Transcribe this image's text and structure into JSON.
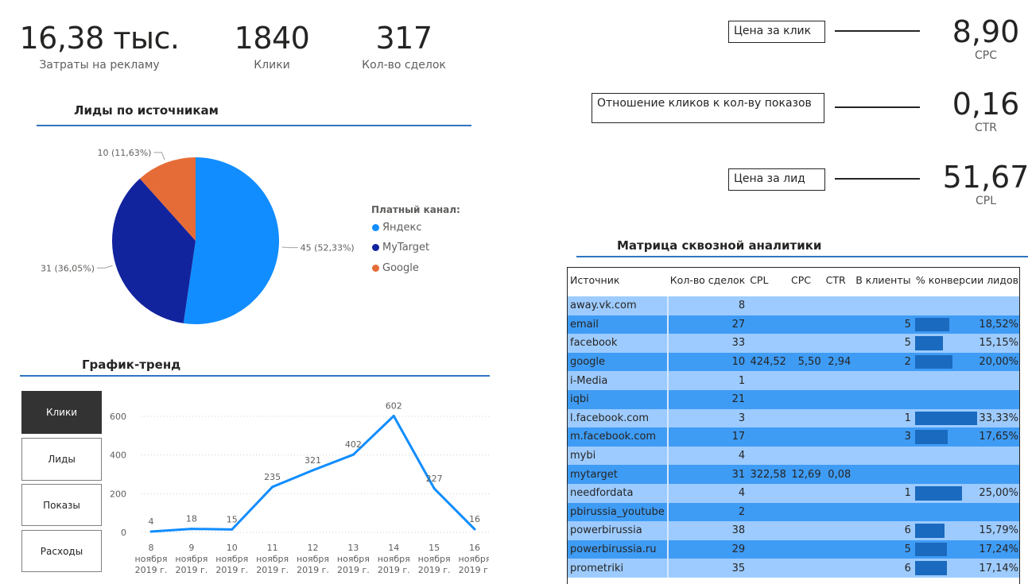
{
  "kpis": [
    {
      "value": "16,38 тыс.",
      "label": "Затраты на рекламу"
    },
    {
      "value": "1840",
      "label": "Клики"
    },
    {
      "value": "317",
      "label": "Кол-во сделок"
    }
  ],
  "right_kpis": [
    {
      "box": "Цена за клик",
      "value": "8,90",
      "label": "CPC"
    },
    {
      "box": "Отношение кликов к кол-ву показов",
      "value": "0,16",
      "label": "CTR"
    },
    {
      "box": "Цена за лид",
      "value": "51,67",
      "label": "CPL"
    }
  ],
  "pie_section": {
    "title": "Лиды по источникам",
    "legend_title": "Платный канал:"
  },
  "trend_section": {
    "title": "График-тренд",
    "buttons": [
      "Клики",
      "Лиды",
      "Показы",
      "Расходы"
    ],
    "active_button": "Клики"
  },
  "matrix_section": {
    "title": "Матрица сквозной аналитики",
    "headers": [
      "Источник",
      "Кол-во сделок",
      "CPL",
      "CPC",
      "CTR",
      "В клиенты",
      "% конверсии лидов"
    ],
    "rows": [
      {
        "source": "away.vk.com",
        "deals": "8",
        "cpl": "",
        "cpc": "",
        "ctr": "",
        "clients": "",
        "conv": "",
        "conv_frac": 0
      },
      {
        "source": "email",
        "deals": "27",
        "cpl": "",
        "cpc": "",
        "ctr": "",
        "clients": "5",
        "conv": "18,52%",
        "conv_frac": 0.1852
      },
      {
        "source": "facebook",
        "deals": "33",
        "cpl": "",
        "cpc": "",
        "ctr": "",
        "clients": "5",
        "conv": "15,15%",
        "conv_frac": 0.1515
      },
      {
        "source": "google",
        "deals": "10",
        "cpl": "424,52",
        "cpc": "5,50",
        "ctr": "2,94",
        "clients": "2",
        "conv": "20,00%",
        "conv_frac": 0.2
      },
      {
        "source": "i-Media",
        "deals": "1",
        "cpl": "",
        "cpc": "",
        "ctr": "",
        "clients": "",
        "conv": "",
        "conv_frac": 0
      },
      {
        "source": "iqbi",
        "deals": "21",
        "cpl": "",
        "cpc": "",
        "ctr": "",
        "clients": "",
        "conv": "",
        "conv_frac": 0
      },
      {
        "source": "l.facebook.com",
        "deals": "3",
        "cpl": "",
        "cpc": "",
        "ctr": "",
        "clients": "1",
        "conv": "33,33%",
        "conv_frac": 0.3333
      },
      {
        "source": "m.facebook.com",
        "deals": "17",
        "cpl": "",
        "cpc": "",
        "ctr": "",
        "clients": "3",
        "conv": "17,65%",
        "conv_frac": 0.1765
      },
      {
        "source": "mybi",
        "deals": "4",
        "cpl": "",
        "cpc": "",
        "ctr": "",
        "clients": "",
        "conv": "",
        "conv_frac": 0
      },
      {
        "source": "mytarget",
        "deals": "31",
        "cpl": "322,58",
        "cpc": "12,69",
        "ctr": "0,08",
        "clients": "",
        "conv": "",
        "conv_frac": 0
      },
      {
        "source": "needfordata",
        "deals": "4",
        "cpl": "",
        "cpc": "",
        "ctr": "",
        "clients": "1",
        "conv": "25,00%",
        "conv_frac": 0.25
      },
      {
        "source": "pbirussia_youtube",
        "deals": "2",
        "cpl": "",
        "cpc": "",
        "ctr": "",
        "clients": "",
        "conv": "",
        "conv_frac": 0
      },
      {
        "source": "powerbirussia",
        "deals": "38",
        "cpl": "",
        "cpc": "",
        "ctr": "",
        "clients": "6",
        "conv": "15,79%",
        "conv_frac": 0.1579
      },
      {
        "source": "powerbirussia.ru",
        "deals": "29",
        "cpl": "",
        "cpc": "",
        "ctr": "",
        "clients": "5",
        "conv": "17,24%",
        "conv_frac": 0.1724
      },
      {
        "source": "prometriki",
        "deals": "35",
        "cpl": "",
        "cpc": "",
        "ctr": "",
        "clients": "6",
        "conv": "17,14%",
        "conv_frac": 0.1714
      }
    ]
  },
  "chart_data": [
    {
      "type": "pie",
      "title": "Лиды по источникам",
      "legend_title": "Платный канал:",
      "legend_position": "right",
      "categories": [
        "Яндекс",
        "MyTarget",
        "Google"
      ],
      "values": [
        45,
        31,
        10
      ],
      "labels": [
        "45 (52,33%)",
        "31 (36,05%)",
        "10 (11,63%)"
      ],
      "colors": [
        "#118dff",
        "#12239e",
        "#e66c37"
      ]
    },
    {
      "type": "line",
      "title": "График-тренд",
      "x": [
        "8 ноября 2019 г.",
        "9 ноября 2019 г.",
        "10 ноября 2019 г.",
        "11 ноября 2019 г.",
        "12 ноября 2019 г.",
        "13 ноября 2019 г.",
        "14 ноября 2019 г.",
        "15 ноября 2019 г.",
        "16 ноября 2019 г."
      ],
      "x_day": [
        "8",
        "9",
        "10",
        "11",
        "12",
        "13",
        "14",
        "15",
        "16"
      ],
      "x_month": "ноября",
      "x_year": "2019 г.",
      "values": [
        4,
        18,
        15,
        235,
        321,
        402,
        602,
        227,
        16
      ],
      "ylim": [
        0,
        600
      ],
      "yticks": [
        0,
        200,
        400,
        600
      ],
      "grid": true,
      "color": "#118dff"
    }
  ]
}
